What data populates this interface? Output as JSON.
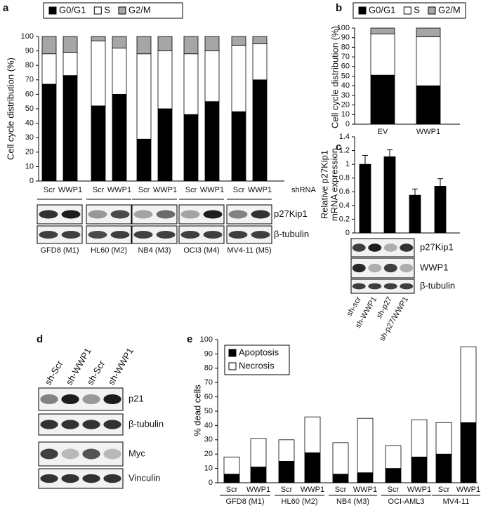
{
  "panels": [
    "a",
    "b",
    "c",
    "d",
    "e"
  ],
  "chart_data": [
    {
      "type": "bar",
      "stacked": true,
      "ylabel": "Cell cycle distribution (%)",
      "xlabel": "shRNA",
      "categories": [
        "Scr",
        "WWP1",
        "Scr",
        "WWP1",
        "Scr",
        "WWP1",
        "Scr",
        "WWP1",
        "Scr",
        "WWP1"
      ],
      "groups": [
        "GFD8 (M1)",
        "HL60 (M2)",
        "NB4 (M3)",
        "OCI3 (M4)",
        "MV4-11 (M5)"
      ],
      "series": [
        {
          "name": "G0/G1",
          "color": "#000000",
          "values": [
            67,
            73,
            52,
            60,
            29,
            50,
            46,
            55,
            48,
            70
          ]
        },
        {
          "name": "S",
          "color": "#ffffff",
          "values": [
            21,
            16,
            45,
            32,
            59,
            40,
            42,
            35,
            46,
            25
          ]
        },
        {
          "name": "G2/M",
          "color": "#a6a6a6",
          "values": [
            12,
            11,
            3,
            8,
            12,
            10,
            12,
            10,
            6,
            5
          ]
        }
      ],
      "ylim": [
        0,
        100
      ],
      "yticks": [
        0,
        10,
        20,
        30,
        40,
        50,
        60,
        70,
        80,
        90,
        100
      ],
      "blot_labels": [
        "p27Kip1",
        "β-tubulin"
      ]
    },
    {
      "type": "bar",
      "stacked": true,
      "ylabel": "Cell cycle distribution (%)",
      "categories": [
        "EV",
        "WWP1"
      ],
      "series": [
        {
          "name": "G0/G1",
          "color": "#000000",
          "values": [
            51,
            40
          ]
        },
        {
          "name": "S",
          "color": "#ffffff",
          "values": [
            43,
            51
          ]
        },
        {
          "name": "G2/M",
          "color": "#a6a6a6",
          "values": [
            6,
            9
          ]
        }
      ],
      "ylim": [
        0,
        100
      ],
      "yticks": [
        0,
        10,
        20,
        30,
        40,
        50,
        60,
        70,
        80,
        90,
        100
      ]
    },
    {
      "type": "bar",
      "stacked": false,
      "ylabel": [
        "Relative p27Kip1",
        "mRNA expression"
      ],
      "categories": [
        "sh-scr",
        "sh-WWP1",
        "sh-p27",
        "sh-p27/WWP1"
      ],
      "series": [
        {
          "color": "#000000",
          "values": [
            1.0,
            1.11,
            0.55,
            0.68
          ],
          "errors": [
            0.13,
            0.1,
            0.09,
            0.11
          ]
        }
      ],
      "ylim": [
        0,
        1.4
      ],
      "yticks": [
        0,
        0.2,
        0.4,
        0.6,
        0.8,
        1,
        1.2,
        1.4
      ],
      "blot_labels": [
        "p27Kip1",
        "WWP1",
        "β-tubulin"
      ]
    },
    {
      "type": "bar",
      "stacked": true,
      "ylabel": "% dead cells",
      "categories": [
        "Scr",
        "WWP1",
        "Scr",
        "WWP1",
        "Scr",
        "WWP1",
        "Scr",
        "WWP1",
        "Scr",
        "WWP1"
      ],
      "groups": [
        "GFD8 (M1)",
        "HL60 (M2)",
        "NB4 (M3)",
        "OCI-AML3",
        "MV4-11"
      ],
      "series": [
        {
          "name": "Apoptosis",
          "color": "#000000",
          "values": [
            6,
            11,
            15,
            21,
            6,
            7,
            10,
            18,
            20,
            42
          ]
        },
        {
          "name": "Necrosis",
          "color": "#ffffff",
          "values": [
            12,
            20,
            15,
            25,
            22,
            38,
            16,
            26,
            22,
            53
          ]
        }
      ],
      "ylim": [
        0,
        100
      ],
      "yticks": [
        0,
        10,
        20,
        30,
        40,
        50,
        60,
        70,
        80,
        90,
        100
      ]
    }
  ],
  "western_blot_d": {
    "lanes": [
      "sh-Scr",
      "sh-WWP1",
      "sh-Scr",
      "sh-WWP1"
    ],
    "rows": [
      "p21",
      "β-tubulin",
      "Myc",
      "Vinculin"
    ]
  }
}
